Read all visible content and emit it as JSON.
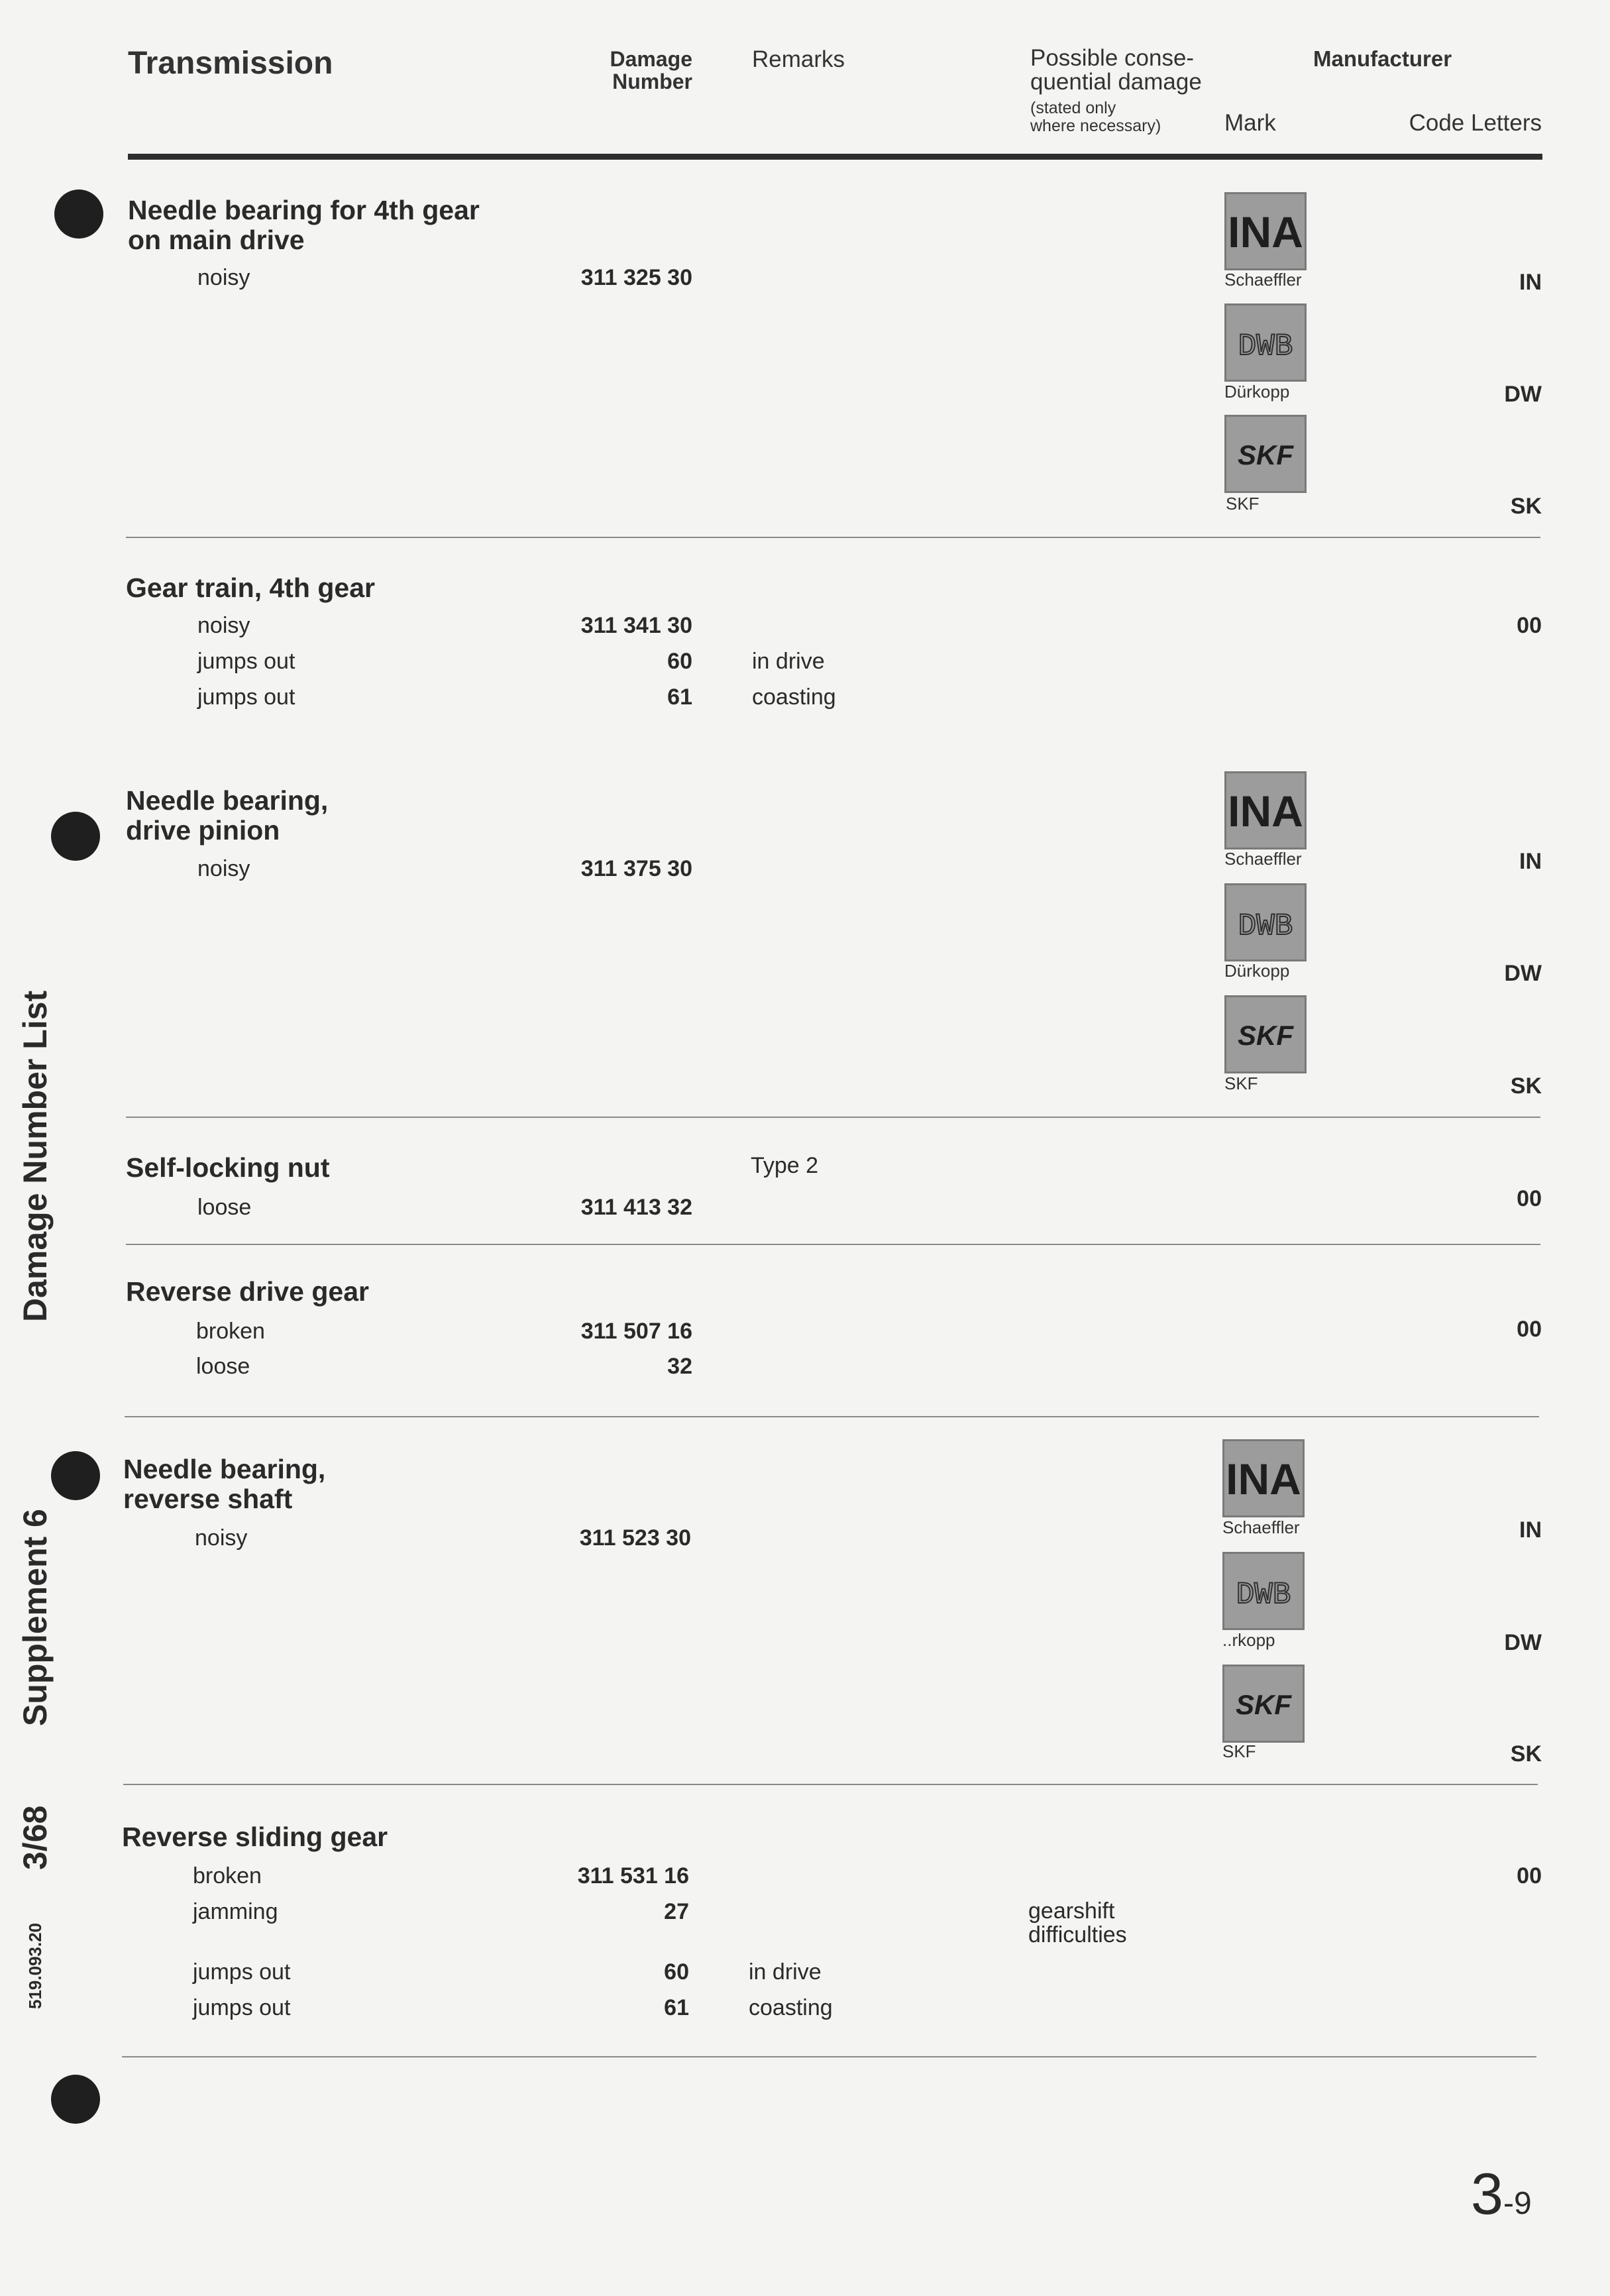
{
  "header": {
    "title": "Transmission",
    "damage_line1": "Damage",
    "damage_line2": "Number",
    "remarks": "Remarks",
    "possible_line1": "Possible conse-",
    "possible_line2": "quential damage",
    "note_line1": "(stated only",
    "note_line2": "where necessary)",
    "manufacturer": "Manufacturer",
    "mark": "Mark",
    "code_letters": "Code Letters"
  },
  "logos": {
    "ina": {
      "text": "INA",
      "label": "Schaeffler",
      "color": "#9c9c9c"
    },
    "dwb": {
      "text": "DWB",
      "label": "Dürkopp",
      "label_partial": "..rkopp",
      "color": "#9c9c9c"
    },
    "skf": {
      "text": "SKF",
      "label": "SKF",
      "color": "#9c9c9c"
    }
  },
  "sections": [
    {
      "title_line1": "Needle bearing for 4th gear",
      "title_line2": "on main drive",
      "rows": [
        {
          "item": "noisy",
          "number": "311 325 30"
        }
      ],
      "codes": [
        "IN",
        "DW",
        "SK"
      ]
    },
    {
      "title": "Gear train, 4th gear",
      "rows": [
        {
          "item": "noisy",
          "number": "311 341 30"
        },
        {
          "item": "jumps out",
          "number": "60",
          "remark": "in drive"
        },
        {
          "item": "jumps out",
          "number": "61",
          "remark": "coasting"
        }
      ],
      "code": "00"
    },
    {
      "title_line1": "Needle bearing,",
      "title_line2": "drive pinion",
      "rows": [
        {
          "item": "noisy",
          "number": "311 375 30"
        }
      ],
      "codes": [
        "IN",
        "DW",
        "SK"
      ]
    },
    {
      "title": "Self-locking nut",
      "remark": "Type 2",
      "rows": [
        {
          "item": "loose",
          "number": "311 413 32"
        }
      ],
      "code": "00"
    },
    {
      "title": "Reverse drive gear",
      "rows": [
        {
          "item": "broken",
          "number": "311 507 16"
        },
        {
          "item": "loose",
          "number": "32"
        }
      ],
      "code": "00"
    },
    {
      "title_line1": "Needle bearing,",
      "title_line2": "reverse  shaft",
      "rows": [
        {
          "item": "noisy",
          "number": "311 523 30"
        }
      ],
      "codes": [
        "IN",
        "DW",
        "SK"
      ]
    },
    {
      "title": "Reverse sliding gear",
      "rows": [
        {
          "item": "broken",
          "number": "311 531 16"
        },
        {
          "item": "jamming",
          "number": "27",
          "consequence_line1": "gearshift",
          "consequence_line2": "difficulties"
        },
        {
          "item": "jumps out",
          "number": "60",
          "remark": "in drive"
        },
        {
          "item": "jumps out",
          "number": "61",
          "remark": "coasting"
        }
      ],
      "code": "00"
    }
  ],
  "sidebar": {
    "list_title": "Damage Number List",
    "supplement": "Supplement 6",
    "date": "3/68",
    "doc_number": "519.093.20"
  },
  "page": {
    "number": "3",
    "sub": "-9"
  }
}
